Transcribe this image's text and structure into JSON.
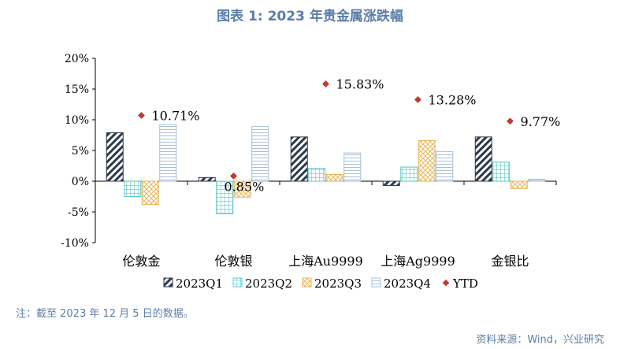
{
  "title": "图表 1:  2023 年贵金属涨跌幅",
  "note": "注：截至 2023 年 12 月 5 日的数据。",
  "source": "资料来源：Wind，兴业研究",
  "chart_data": {
    "type": "bar",
    "categories": [
      "伦敦金",
      "伦敦银",
      "上海Au9999",
      "上海Ag9999",
      "金银比"
    ],
    "series": [
      {
        "name": "2023Q1",
        "values": [
          7.9,
          0.6,
          7.2,
          -0.7,
          7.2
        ],
        "color": "#2b3a4a",
        "pattern": "diagonal"
      },
      {
        "name": "2023Q2",
        "values": [
          -2.5,
          -5.3,
          2.1,
          2.3,
          3.1
        ],
        "color": "#5cc8c8",
        "pattern": "grid"
      },
      {
        "name": "2023Q3",
        "values": [
          -3.8,
          -2.6,
          1.1,
          6.6,
          -1.2
        ],
        "color": "#e6b65a",
        "pattern": "crosshatch"
      },
      {
        "name": "2023Q4",
        "values": [
          9.2,
          8.9,
          4.6,
          4.8,
          0.3
        ],
        "color": "#a9bfd6",
        "pattern": "horizontal"
      }
    ],
    "ytd": {
      "name": "YTD",
      "values": [
        10.71,
        0.85,
        15.83,
        13.28,
        9.77
      ],
      "labels": [
        "10.71%",
        "0.85%",
        "15.83%",
        "13.28%",
        "9.77%"
      ],
      "color": "#c0392b"
    },
    "ylim": [
      -10,
      20
    ],
    "yticks": [
      -10,
      -5,
      0,
      5,
      10,
      15,
      20
    ],
    "ytick_labels": [
      "-10%",
      "-5%",
      "0%",
      "5%",
      "10%",
      "15%",
      "20%"
    ],
    "legend_position": "bottom"
  }
}
